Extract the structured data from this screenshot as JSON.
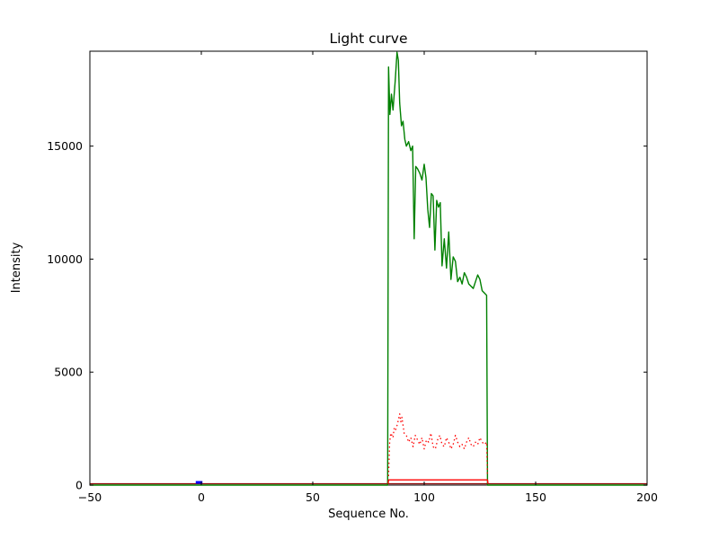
{
  "figure": {
    "background": "#ffffff",
    "plot_background": "#ffffff",
    "axis_color": "#000000"
  },
  "chart_data": {
    "type": "line",
    "title": "Light curve",
    "xlabel": "Sequence No.",
    "ylabel": "Intensity",
    "xlim": [
      -50,
      200
    ],
    "ylim": [
      0,
      19200
    ],
    "x_ticks": [
      -50,
      0,
      50,
      100,
      150,
      200
    ],
    "x_tick_labels": [
      "−50",
      "0",
      "50",
      "100",
      "150",
      "200"
    ],
    "y_ticks": [
      0,
      5000,
      10000,
      15000
    ],
    "y_tick_labels": [
      "0",
      "5000",
      "10000",
      "15000"
    ],
    "grid": false,
    "legend": null,
    "series": [
      {
        "name": "baseline-dark-red",
        "color": "#8b0000",
        "style": "solid",
        "width": 1.3,
        "points": [
          [
            -50,
            60
          ],
          [
            200,
            60
          ]
        ]
      },
      {
        "name": "blue-marker",
        "color": "#0000ff",
        "style": "solid",
        "width": 3,
        "points": [
          [
            -2.5,
            120
          ],
          [
            0.5,
            120
          ]
        ]
      },
      {
        "name": "green-burst",
        "color": "#008000",
        "style": "solid",
        "width": 1.4,
        "points": [
          [
            -50,
            0
          ],
          [
            83.6,
            0
          ],
          [
            84.0,
            18500
          ],
          [
            84.6,
            16400
          ],
          [
            85.3,
            17300
          ],
          [
            86.0,
            16600
          ],
          [
            87.0,
            17900
          ],
          [
            87.8,
            19150
          ],
          [
            88.4,
            18800
          ],
          [
            89.0,
            16900
          ],
          [
            89.8,
            15900
          ],
          [
            90.5,
            16100
          ],
          [
            91.3,
            15300
          ],
          [
            92.0,
            15000
          ],
          [
            93.0,
            15200
          ],
          [
            94.0,
            14800
          ],
          [
            94.8,
            15000
          ],
          [
            95.5,
            10900
          ],
          [
            96.2,
            14100
          ],
          [
            97.0,
            14000
          ],
          [
            98.0,
            13800
          ],
          [
            99.0,
            13500
          ],
          [
            100.0,
            14200
          ],
          [
            100.8,
            13600
          ],
          [
            101.6,
            12200
          ],
          [
            102.4,
            11400
          ],
          [
            103.2,
            12900
          ],
          [
            104.0,
            12800
          ],
          [
            104.8,
            10400
          ],
          [
            105.6,
            12600
          ],
          [
            106.4,
            12300
          ],
          [
            107.2,
            12500
          ],
          [
            108.0,
            9700
          ],
          [
            109.0,
            10900
          ],
          [
            110.0,
            9600
          ],
          [
            111.0,
            11200
          ],
          [
            112.0,
            9100
          ],
          [
            113.0,
            10100
          ],
          [
            114.0,
            9900
          ],
          [
            115.0,
            9000
          ],
          [
            116.0,
            9200
          ],
          [
            117.0,
            8900
          ],
          [
            118.0,
            9400
          ],
          [
            119.0,
            9200
          ],
          [
            120.0,
            8900
          ],
          [
            121.0,
            8800
          ],
          [
            122.0,
            8700
          ],
          [
            123.0,
            9000
          ],
          [
            124.0,
            9300
          ],
          [
            125.0,
            9100
          ],
          [
            126.0,
            8600
          ],
          [
            127.0,
            8500
          ],
          [
            128.0,
            8400
          ],
          [
            128.4,
            0
          ],
          [
            200,
            0
          ]
        ]
      },
      {
        "name": "red-dotted-noise",
        "color": "#ff0000",
        "style": "dotted",
        "width": 1.3,
        "points": [
          [
            84,
            400
          ],
          [
            84.5,
            1900
          ],
          [
            85,
            2300
          ],
          [
            86,
            2100
          ],
          [
            86.5,
            2500
          ],
          [
            87,
            2400
          ],
          [
            88,
            2700
          ],
          [
            89,
            3150
          ],
          [
            89.5,
            2800
          ],
          [
            90,
            3000
          ],
          [
            91,
            2300
          ],
          [
            92,
            2200
          ],
          [
            93,
            1900
          ],
          [
            94,
            2100
          ],
          [
            95,
            1700
          ],
          [
            96,
            2200
          ],
          [
            97,
            2000
          ],
          [
            98,
            1800
          ],
          [
            99,
            2100
          ],
          [
            100,
            1600
          ],
          [
            101,
            2000
          ],
          [
            102,
            1900
          ],
          [
            103,
            2300
          ],
          [
            104,
            1700
          ],
          [
            105,
            1600
          ],
          [
            106,
            2000
          ],
          [
            107,
            2200
          ],
          [
            108,
            1800
          ],
          [
            109,
            1700
          ],
          [
            110,
            2100
          ],
          [
            111,
            1900
          ],
          [
            112,
            1600
          ],
          [
            113,
            1800
          ],
          [
            114,
            2200
          ],
          [
            115,
            1900
          ],
          [
            116,
            1700
          ],
          [
            117,
            1800
          ],
          [
            118,
            1600
          ],
          [
            119,
            1900
          ],
          [
            120,
            2100
          ],
          [
            121,
            1800
          ],
          [
            122,
            1700
          ],
          [
            123,
            1900
          ],
          [
            124,
            1800
          ],
          [
            125,
            2100
          ],
          [
            126,
            1900
          ],
          [
            127,
            1800
          ],
          [
            128,
            1900
          ],
          [
            128.4,
            400
          ]
        ]
      },
      {
        "name": "red-step",
        "color": "#ff0000",
        "style": "solid",
        "width": 1.4,
        "points": [
          [
            83.8,
            60
          ],
          [
            84,
            230
          ],
          [
            128.4,
            230
          ],
          [
            128.6,
            60
          ]
        ]
      }
    ]
  }
}
